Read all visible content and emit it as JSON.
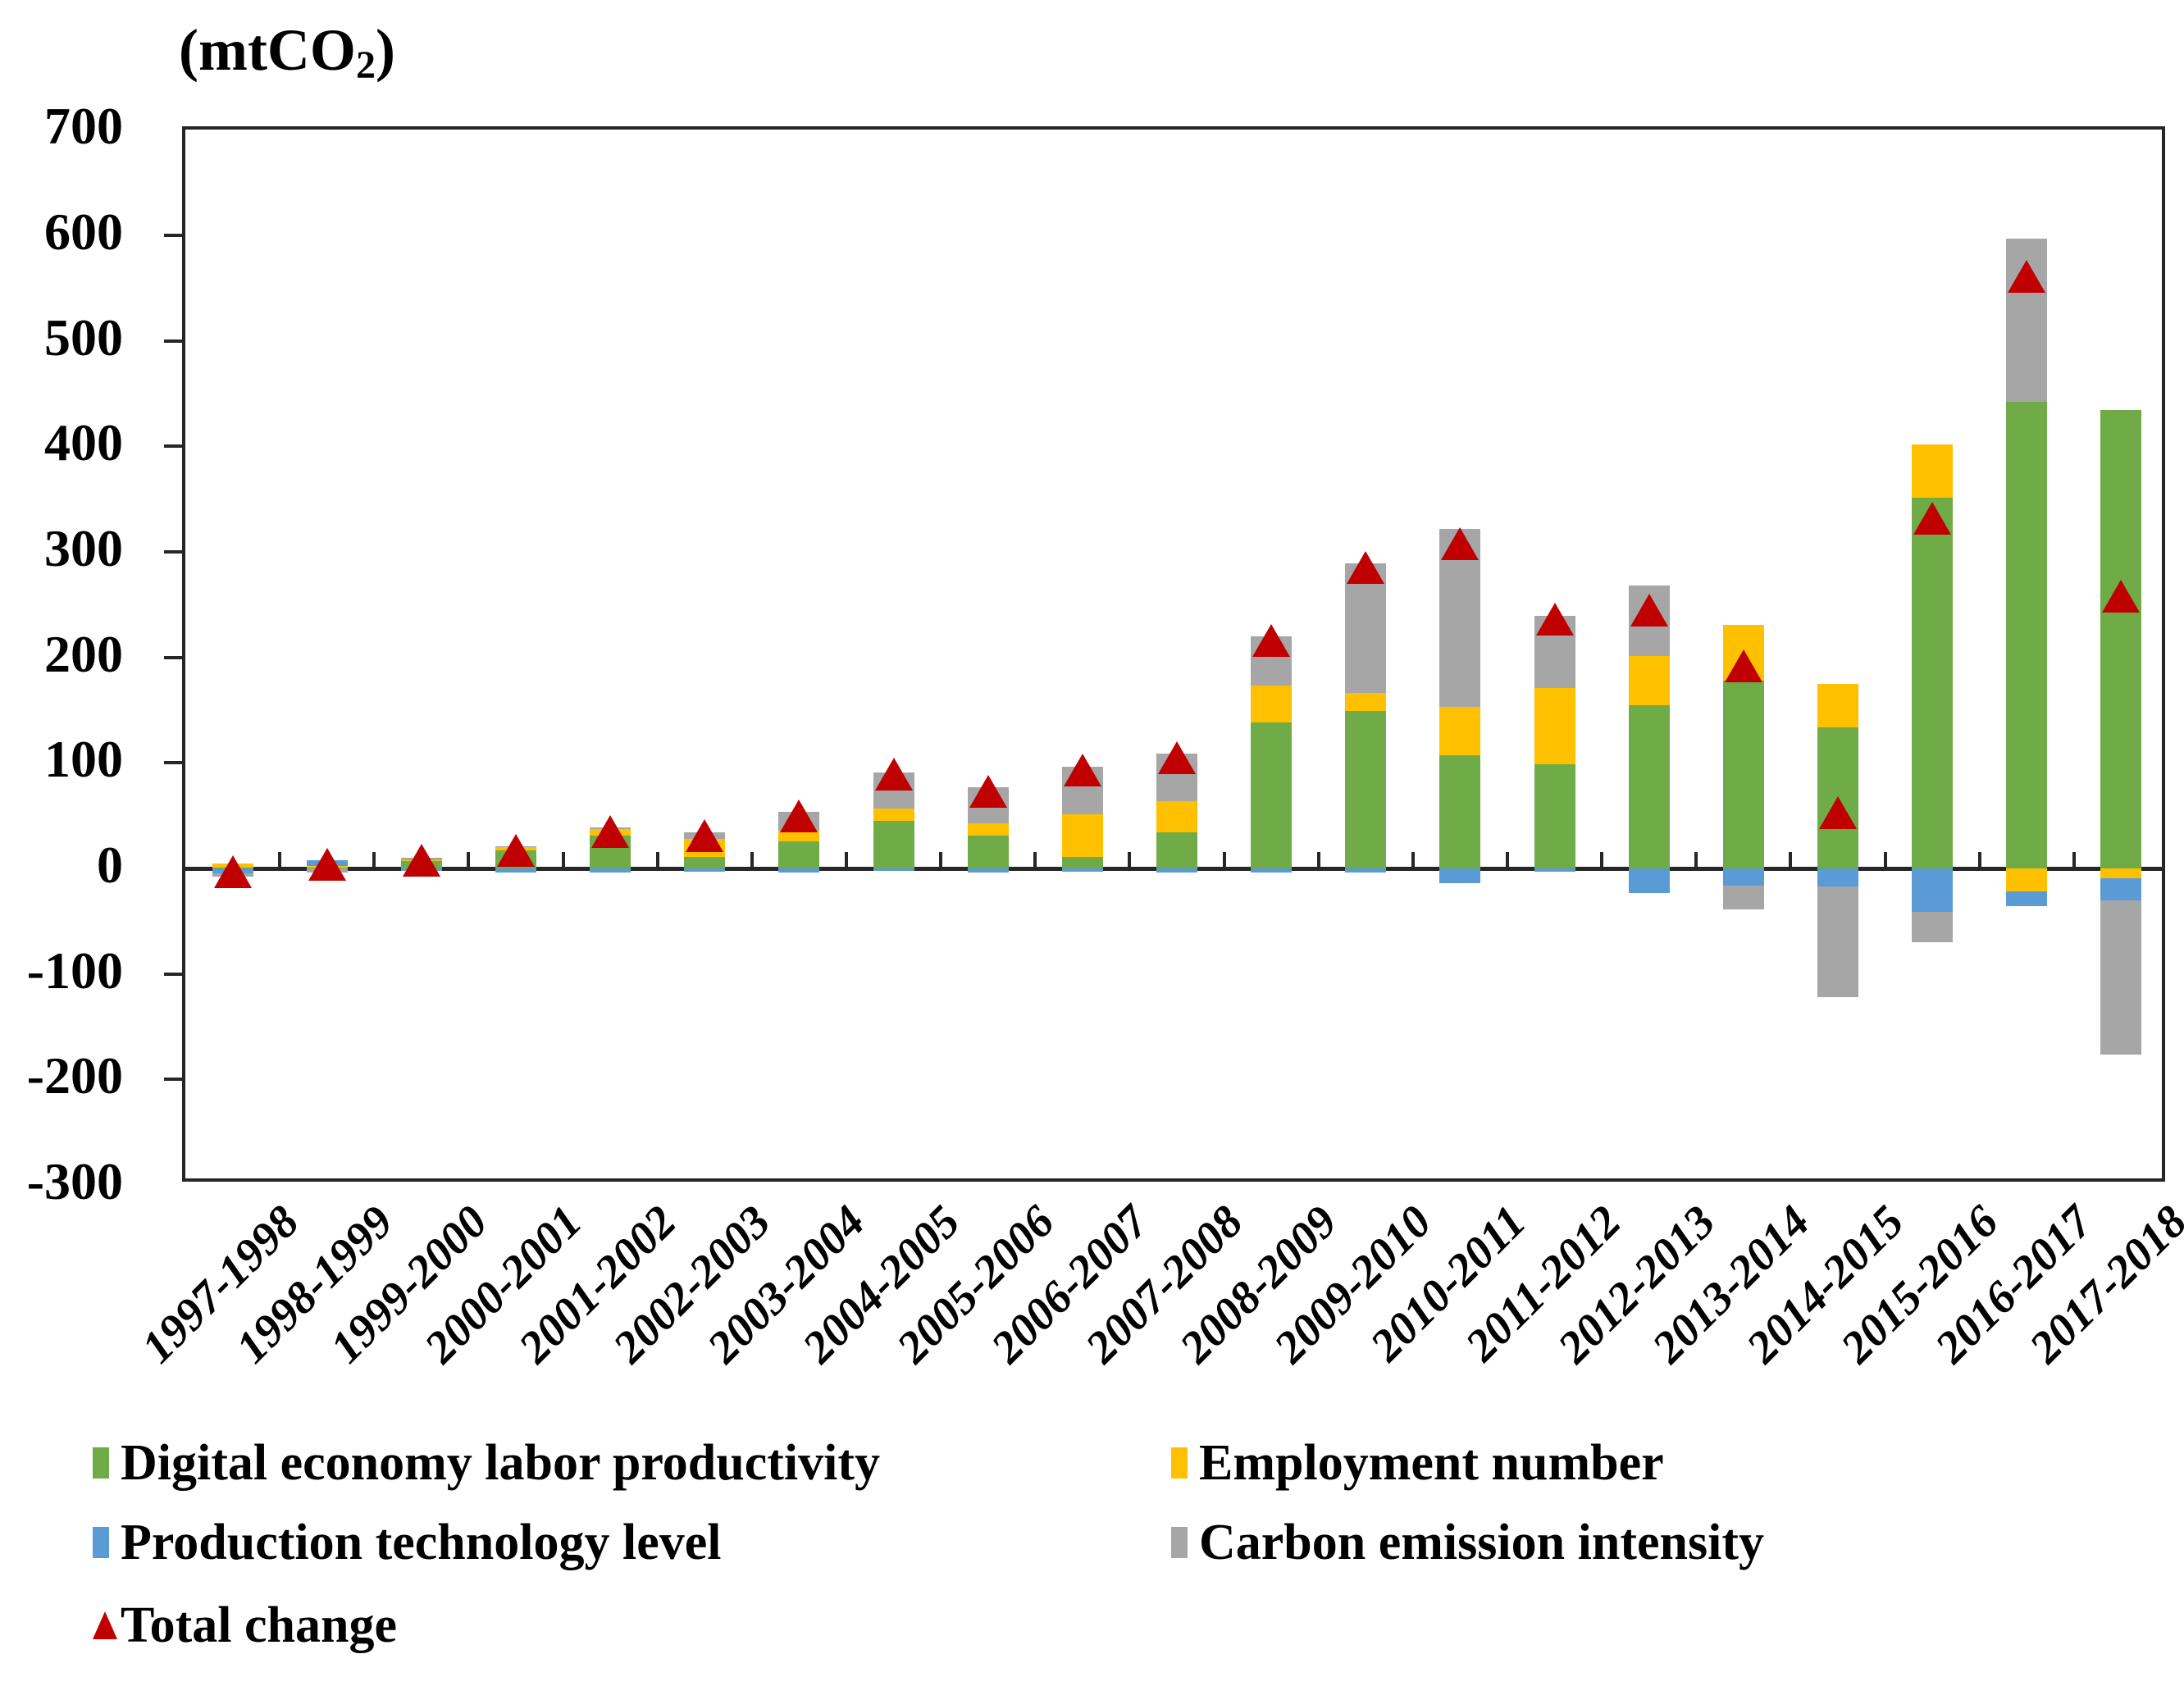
{
  "unit_label": {
    "pre": "(mtCO",
    "sub": "2",
    "post": ")"
  },
  "chart_data": {
    "type": "bar",
    "subtype": "stacked-with-total-markers",
    "title": "(mtCO2)",
    "xlabel": "",
    "ylabel": "(mtCO2)",
    "ylim": [
      -300,
      700
    ],
    "ytick_step": 100,
    "grid": false,
    "legend_position": "bottom",
    "categories": [
      "1997-1998",
      "1998-1999",
      "1999-2000",
      "2000-2001",
      "2001-2002",
      "2002-2003",
      "2003-2004",
      "2004-2005",
      "2005-2006",
      "2006-2007",
      "2007-2008",
      "2008-2009",
      "2009-2010",
      "2010-2011",
      "2011-2012",
      "2012-2013",
      "2013-2014",
      "2014-2015",
      "2015-2016",
      "2016-2017",
      "2017-2018"
    ],
    "series": [
      {
        "name": "Digital economy labor productivity",
        "color": "#6FAC47",
        "values": [
          1,
          1,
          7,
          17,
          31,
          11,
          26,
          45,
          31,
          11,
          34,
          138,
          149,
          107,
          99,
          155,
          178,
          134,
          351,
          442,
          434
        ]
      },
      {
        "name": "Employment number",
        "color": "#FFC000",
        "values": [
          4,
          1,
          1,
          3,
          6,
          17,
          10,
          12,
          12,
          40,
          30,
          35,
          17,
          46,
          72,
          46,
          53,
          41,
          51,
          -22,
          -9
        ]
      },
      {
        "name": "Production technology level",
        "color": "#5B9BD5",
        "values": [
          -5,
          6,
          -2,
          -4,
          -4,
          -3,
          -4,
          -2,
          -4,
          -3,
          -4,
          -4,
          -4,
          -14,
          -3,
          -23,
          -16,
          -17,
          -41,
          -14,
          -21
        ]
      },
      {
        "name": "Carbon emission intensity",
        "color": "#A6A6A6",
        "values": [
          -3,
          -4,
          2,
          1,
          2,
          6,
          18,
          34,
          34,
          45,
          45,
          47,
          123,
          169,
          68,
          67,
          -23,
          -105,
          -29,
          155,
          -146
        ]
      }
    ],
    "total_series": {
      "name": "Total change",
      "color": "#C00000",
      "marker": "triangle",
      "values": [
        -3,
        4,
        8,
        17,
        35,
        31,
        50,
        89,
        73,
        93,
        105,
        216,
        285,
        308,
        236,
        245,
        192,
        53,
        332,
        561,
        258
      ]
    }
  },
  "legend": {
    "items": [
      {
        "label": "Digital economy labor productivity",
        "color": "#6FAC47",
        "marker": "square"
      },
      {
        "label": "Employment number",
        "color": "#FFC000",
        "marker": "square"
      },
      {
        "label": "Production technology level",
        "color": "#5B9BD5",
        "marker": "square"
      },
      {
        "label": "Carbon emission intensity",
        "color": "#A6A6A6",
        "marker": "square"
      },
      {
        "label": "Total change",
        "color": "#C00000",
        "marker": "triangle"
      }
    ]
  }
}
